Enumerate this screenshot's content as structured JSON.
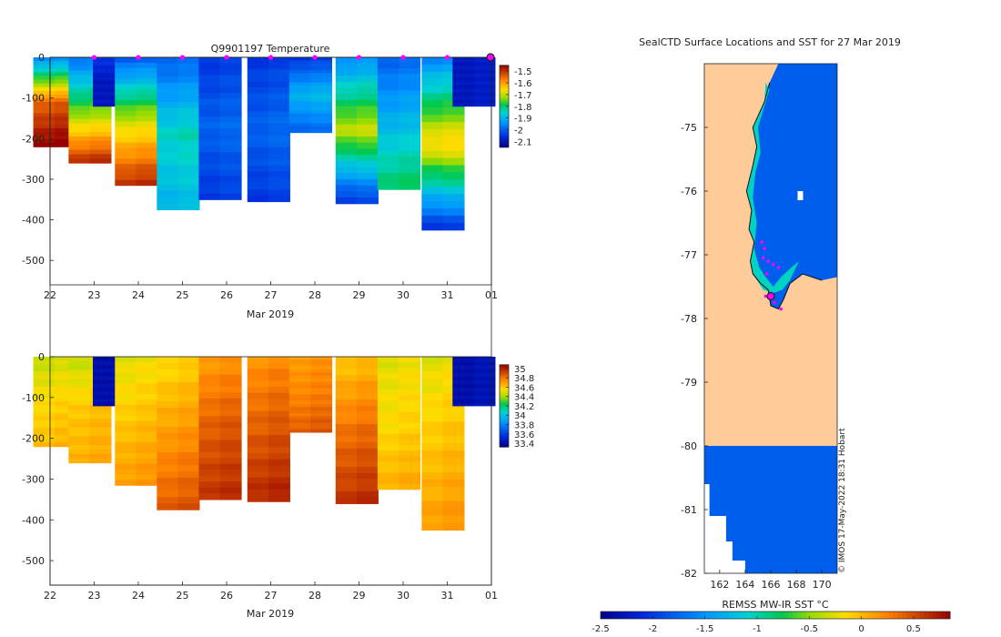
{
  "chart_data": [
    {
      "type": "heatmap",
      "title": "Q9901197  Temperature",
      "xlabel": "Mar 2019",
      "ylabel": "",
      "x_ticks": [
        "22",
        "23",
        "24",
        "25",
        "26",
        "27",
        "28",
        "29",
        "30",
        "31",
        "01"
      ],
      "y_ticks": [
        0,
        -100,
        -200,
        -300,
        -400,
        -500
      ],
      "ylim": [
        -560,
        0
      ],
      "colorbar_ticks": [
        -1.5,
        -1.6,
        -1.7,
        -1.8,
        -1.9,
        -2,
        -2.1
      ],
      "colorbar_range": [
        -2.15,
        -1.45
      ],
      "profiles": [
        {
          "day": 22.1,
          "depth": 220,
          "surface": -1.95,
          "mid": -1.55,
          "deep": -1.45
        },
        {
          "day": 22.9,
          "depth": 260,
          "surface": -1.98,
          "mid": -1.75,
          "deep": -1.5
        },
        {
          "day": 23.45,
          "depth": 120,
          "surface": -2.05,
          "mid": -2.1,
          "deep": -2.1
        },
        {
          "day": 23.95,
          "depth": 315,
          "surface": -2.0,
          "mid": -1.7,
          "deep": -1.5
        },
        {
          "day": 24.9,
          "depth": 375,
          "surface": -2.0,
          "mid": -1.85,
          "deep": -1.9
        },
        {
          "day": 25.85,
          "depth": 350,
          "surface": -2.05,
          "mid": -2.0,
          "deep": -2.05
        },
        {
          "day": 26.95,
          "depth": 355,
          "surface": -2.05,
          "mid": -2.0,
          "deep": -2.05
        },
        {
          "day": 27.9,
          "depth": 185,
          "surface": -2.05,
          "mid": -1.9,
          "deep": -2.0
        },
        {
          "day": 28.95,
          "depth": 360,
          "surface": -1.95,
          "mid": -1.7,
          "deep": -2.05
        },
        {
          "day": 29.9,
          "depth": 325,
          "surface": -2.0,
          "mid": -1.9,
          "deep": -1.8
        },
        {
          "day": 30.9,
          "depth": 425,
          "surface": -1.95,
          "mid": -1.65,
          "deep": -2.05
        },
        {
          "day": 31.6,
          "depth": 120,
          "surface": -2.1,
          "mid": -2.1,
          "deep": -2.1
        }
      ],
      "markers": [
        23,
        24,
        25,
        26,
        27,
        28,
        29,
        30,
        31
      ]
    },
    {
      "type": "heatmap",
      "title": "",
      "xlabel": "Mar 2019",
      "ylabel": "",
      "x_ticks": [
        "22",
        "23",
        "24",
        "25",
        "26",
        "27",
        "28",
        "29",
        "30",
        "31",
        "01"
      ],
      "y_ticks": [
        0,
        -100,
        -200,
        -300,
        -400,
        -500
      ],
      "ylim": [
        -560,
        0
      ],
      "colorbar_ticks": [
        35,
        34.8,
        34.6,
        34.4,
        34.2,
        34,
        33.8,
        33.6,
        33.4
      ],
      "colorbar_range": [
        33.32,
        35.08
      ],
      "profiles": [
        {
          "day": 22.1,
          "depth": 220,
          "surface": 34.45,
          "mid": 34.55,
          "deep": 34.62
        },
        {
          "day": 22.9,
          "depth": 260,
          "surface": 34.45,
          "mid": 34.6,
          "deep": 34.65
        },
        {
          "day": 23.45,
          "depth": 120,
          "surface": 33.4,
          "mid": 33.4,
          "deep": 33.4
        },
        {
          "day": 23.95,
          "depth": 315,
          "surface": 34.5,
          "mid": 34.6,
          "deep": 34.7
        },
        {
          "day": 24.9,
          "depth": 375,
          "surface": 34.55,
          "mid": 34.7,
          "deep": 34.85
        },
        {
          "day": 25.85,
          "depth": 350,
          "surface": 34.7,
          "mid": 34.85,
          "deep": 34.95
        },
        {
          "day": 26.95,
          "depth": 355,
          "surface": 34.72,
          "mid": 34.85,
          "deep": 34.98
        },
        {
          "day": 27.9,
          "depth": 185,
          "surface": 34.7,
          "mid": 34.75,
          "deep": 34.85
        },
        {
          "day": 28.95,
          "depth": 360,
          "surface": 34.6,
          "mid": 34.8,
          "deep": 34.95
        },
        {
          "day": 29.9,
          "depth": 325,
          "surface": 34.5,
          "mid": 34.55,
          "deep": 34.65
        },
        {
          "day": 30.9,
          "depth": 425,
          "surface": 34.5,
          "mid": 34.6,
          "deep": 34.7
        },
        {
          "day": 31.6,
          "depth": 120,
          "surface": 33.4,
          "mid": 33.4,
          "deep": 33.4
        }
      ]
    },
    {
      "type": "heatmap",
      "title": "SealCTD Surface Locations and SST for 27 Mar 2019",
      "xlabel": "",
      "ylabel": "",
      "x_ticks": [
        "162",
        "164",
        "166",
        "168",
        "170"
      ],
      "x_tick_values": [
        162,
        164,
        166,
        168,
        170
      ],
      "y_ticks": [
        "-75",
        "-76",
        "-77",
        "-78",
        "-79",
        "-80",
        "-81",
        "-82"
      ],
      "y_tick_values": [
        -75,
        -76,
        -77,
        -78,
        -79,
        -80,
        -81,
        -82
      ],
      "xlim": [
        160.8,
        171.2
      ],
      "ylim": [
        -82,
        -74
      ],
      "colorbar_label": "REMSS MW-IR SST °C",
      "colorbar_ticks": [
        "-2.5",
        "-2",
        "-1.5",
        "-1",
        "-0.5",
        "0",
        "0.5"
      ],
      "colorbar_tick_values": [
        -2.5,
        -2,
        -1.5,
        -1,
        -0.5,
        0,
        0.5
      ],
      "colorbar_range": [
        -2.5,
        0.85
      ],
      "credit": "© IMOS 17-May-2022 18:31 Hobart",
      "sst_ocean_value": -1.8,
      "sst_coast_value": -1.05,
      "land_color": "#ffcc99",
      "locations": [
        {
          "lon": 165.3,
          "lat": -76.8
        },
        {
          "lon": 165.5,
          "lat": -76.9
        },
        {
          "lon": 165.4,
          "lat": -77.05
        },
        {
          "lon": 165.8,
          "lat": -77.1
        },
        {
          "lon": 166.2,
          "lat": -77.15
        },
        {
          "lon": 166.6,
          "lat": -77.2
        },
        {
          "lon": 165.7,
          "lat": -77.3
        },
        {
          "lon": 165.6,
          "lat": -77.65
        },
        {
          "lon": 166.3,
          "lat": -77.75
        },
        {
          "lon": 166.8,
          "lat": -77.85
        }
      ],
      "last_location": {
        "lon": 166.0,
        "lat": -77.65
      }
    }
  ],
  "colors": {
    "marker": "#ff00ff",
    "land": "#ffcc99",
    "axis": "#222222"
  }
}
